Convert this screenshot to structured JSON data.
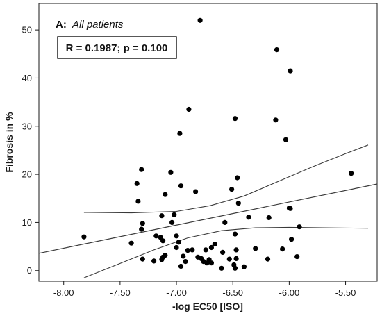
{
  "chart_data": {
    "type": "scatter",
    "panel_label": {
      "letter": "A:",
      "text": "All patients"
    },
    "annotation": "R = 0.1987; p = 0.100",
    "xlabel": "-log EC50 [ISO]",
    "ylabel": "Fibrosis in %",
    "xlim": [
      -8.22,
      -5.22
    ],
    "ylim": [
      -2.2,
      55.5
    ],
    "x_ticks": [
      -8.0,
      -7.5,
      -7.0,
      -6.5,
      -6.0,
      -5.5
    ],
    "x_tick_labels": [
      "-8.00",
      "-7.50",
      "-7.00",
      "-6.50",
      "-6.00",
      "-5.50"
    ],
    "y_ticks": [
      0,
      10,
      20,
      30,
      40,
      50
    ],
    "y_tick_labels": [
      "0",
      "10",
      "20",
      "30",
      "40",
      "50"
    ],
    "grid": false,
    "points": [
      {
        "x": -7.82,
        "y": 7.0
      },
      {
        "x": -7.4,
        "y": 5.7
      },
      {
        "x": -7.35,
        "y": 18.1
      },
      {
        "x": -7.34,
        "y": 14.4
      },
      {
        "x": -7.31,
        "y": 21.0
      },
      {
        "x": -7.31,
        "y": 8.6
      },
      {
        "x": -7.3,
        "y": 9.8
      },
      {
        "x": -7.3,
        "y": 2.4
      },
      {
        "x": -7.2,
        "y": 2.0
      },
      {
        "x": -7.18,
        "y": 7.2
      },
      {
        "x": -7.14,
        "y": 6.9
      },
      {
        "x": -7.13,
        "y": 2.3
      },
      {
        "x": -7.13,
        "y": 11.4
      },
      {
        "x": -7.12,
        "y": 2.8
      },
      {
        "x": -7.12,
        "y": 6.2
      },
      {
        "x": -7.1,
        "y": 3.2
      },
      {
        "x": -7.1,
        "y": 15.8
      },
      {
        "x": -7.05,
        "y": 20.4
      },
      {
        "x": -7.04,
        "y": 10.0
      },
      {
        "x": -7.02,
        "y": 11.6
      },
      {
        "x": -7.0,
        "y": 4.8
      },
      {
        "x": -7.0,
        "y": 7.2
      },
      {
        "x": -6.98,
        "y": 5.9
      },
      {
        "x": -6.97,
        "y": 28.5
      },
      {
        "x": -6.96,
        "y": 17.6
      },
      {
        "x": -6.96,
        "y": 0.9
      },
      {
        "x": -6.94,
        "y": 3.0
      },
      {
        "x": -6.92,
        "y": 1.9
      },
      {
        "x": -6.9,
        "y": 4.2
      },
      {
        "x": -6.89,
        "y": 33.5
      },
      {
        "x": -6.86,
        "y": 4.3
      },
      {
        "x": -6.83,
        "y": 16.4
      },
      {
        "x": -6.81,
        "y": 2.8
      },
      {
        "x": -6.79,
        "y": 52.0
      },
      {
        "x": -6.78,
        "y": 2.5
      },
      {
        "x": -6.76,
        "y": 1.9
      },
      {
        "x": -6.74,
        "y": 4.3
      },
      {
        "x": -6.73,
        "y": 1.6
      },
      {
        "x": -6.71,
        "y": 2.3
      },
      {
        "x": -6.69,
        "y": 1.6
      },
      {
        "x": -6.69,
        "y": 4.8
      },
      {
        "x": -6.66,
        "y": 5.5
      },
      {
        "x": -6.6,
        "y": 0.5
      },
      {
        "x": -6.59,
        "y": 3.8
      },
      {
        "x": -6.57,
        "y": 10.0
      },
      {
        "x": -6.53,
        "y": 2.4
      },
      {
        "x": -6.51,
        "y": 16.9
      },
      {
        "x": -6.49,
        "y": 1.2
      },
      {
        "x": -6.48,
        "y": 31.6
      },
      {
        "x": -6.48,
        "y": 0.5
      },
      {
        "x": -6.48,
        "y": 7.6
      },
      {
        "x": -6.47,
        "y": 2.5
      },
      {
        "x": -6.47,
        "y": 4.3
      },
      {
        "x": -6.46,
        "y": 19.3
      },
      {
        "x": -6.45,
        "y": 14.0
      },
      {
        "x": -6.4,
        "y": 0.8
      },
      {
        "x": -6.36,
        "y": 11.1
      },
      {
        "x": -6.3,
        "y": 4.6
      },
      {
        "x": -6.19,
        "y": 2.4
      },
      {
        "x": -6.18,
        "y": 11.0
      },
      {
        "x": -6.12,
        "y": 31.3
      },
      {
        "x": -6.11,
        "y": 45.9
      },
      {
        "x": -6.06,
        "y": 4.5
      },
      {
        "x": -6.03,
        "y": 27.2
      },
      {
        "x": -6.0,
        "y": 13.0
      },
      {
        "x": -5.99,
        "y": 12.9
      },
      {
        "x": -5.99,
        "y": 41.5
      },
      {
        "x": -5.98,
        "y": 6.5
      },
      {
        "x": -5.93,
        "y": 2.9
      },
      {
        "x": -5.91,
        "y": 9.1
      },
      {
        "x": -5.45,
        "y": 20.2
      }
    ],
    "fit_line": {
      "x": [
        -8.22,
        -5.22
      ],
      "y": [
        3.6,
        18.0
      ]
    },
    "ci_upper": {
      "x": [
        -7.82,
        -7.4,
        -7.0,
        -6.7,
        -6.4,
        -6.1,
        -5.8,
        -5.5,
        -5.3
      ],
      "y": [
        12.1,
        12.0,
        12.3,
        13.5,
        15.5,
        18.5,
        21.5,
        24.3,
        26.1
      ]
    },
    "ci_lower": {
      "x": [
        -7.82,
        -7.5,
        -7.2,
        -6.9,
        -6.6,
        -6.3,
        -6.0,
        -5.7,
        -5.3
      ],
      "y": [
        -1.5,
        1.5,
        4.3,
        6.8,
        8.3,
        8.9,
        9.0,
        8.9,
        8.8
      ]
    },
    "colors": {
      "points": "#000000",
      "lines": "#3a3a3a",
      "axes": "#1a1a1a"
    }
  }
}
